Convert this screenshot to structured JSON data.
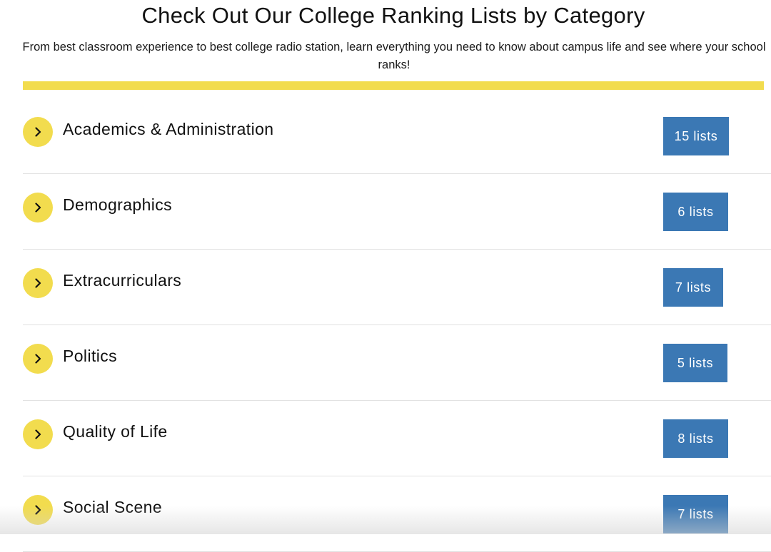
{
  "header": {
    "title": "Check Out Our College Ranking Lists by Category",
    "subtitle": "From best classroom experience to best college radio station, learn everything you need to know about campus life and see where your school ranks!"
  },
  "colors": {
    "accent_yellow": "#f2dc4e",
    "badge_blue": "#3b78b4"
  },
  "categories": [
    {
      "label": "Academics & Administration",
      "count_label": "15 lists",
      "icon": "chevron-right-icon"
    },
    {
      "label": "Demographics",
      "count_label": "6 lists",
      "icon": "chevron-right-icon"
    },
    {
      "label": "Extracurriculars",
      "count_label": "7 lists",
      "icon": "chevron-right-icon"
    },
    {
      "label": "Politics",
      "count_label": "5 lists",
      "icon": "chevron-right-icon"
    },
    {
      "label": "Quality of Life",
      "count_label": "8 lists",
      "icon": "chevron-right-icon"
    },
    {
      "label": "Social Scene",
      "count_label": "7 lists",
      "icon": "chevron-right-icon"
    }
  ]
}
